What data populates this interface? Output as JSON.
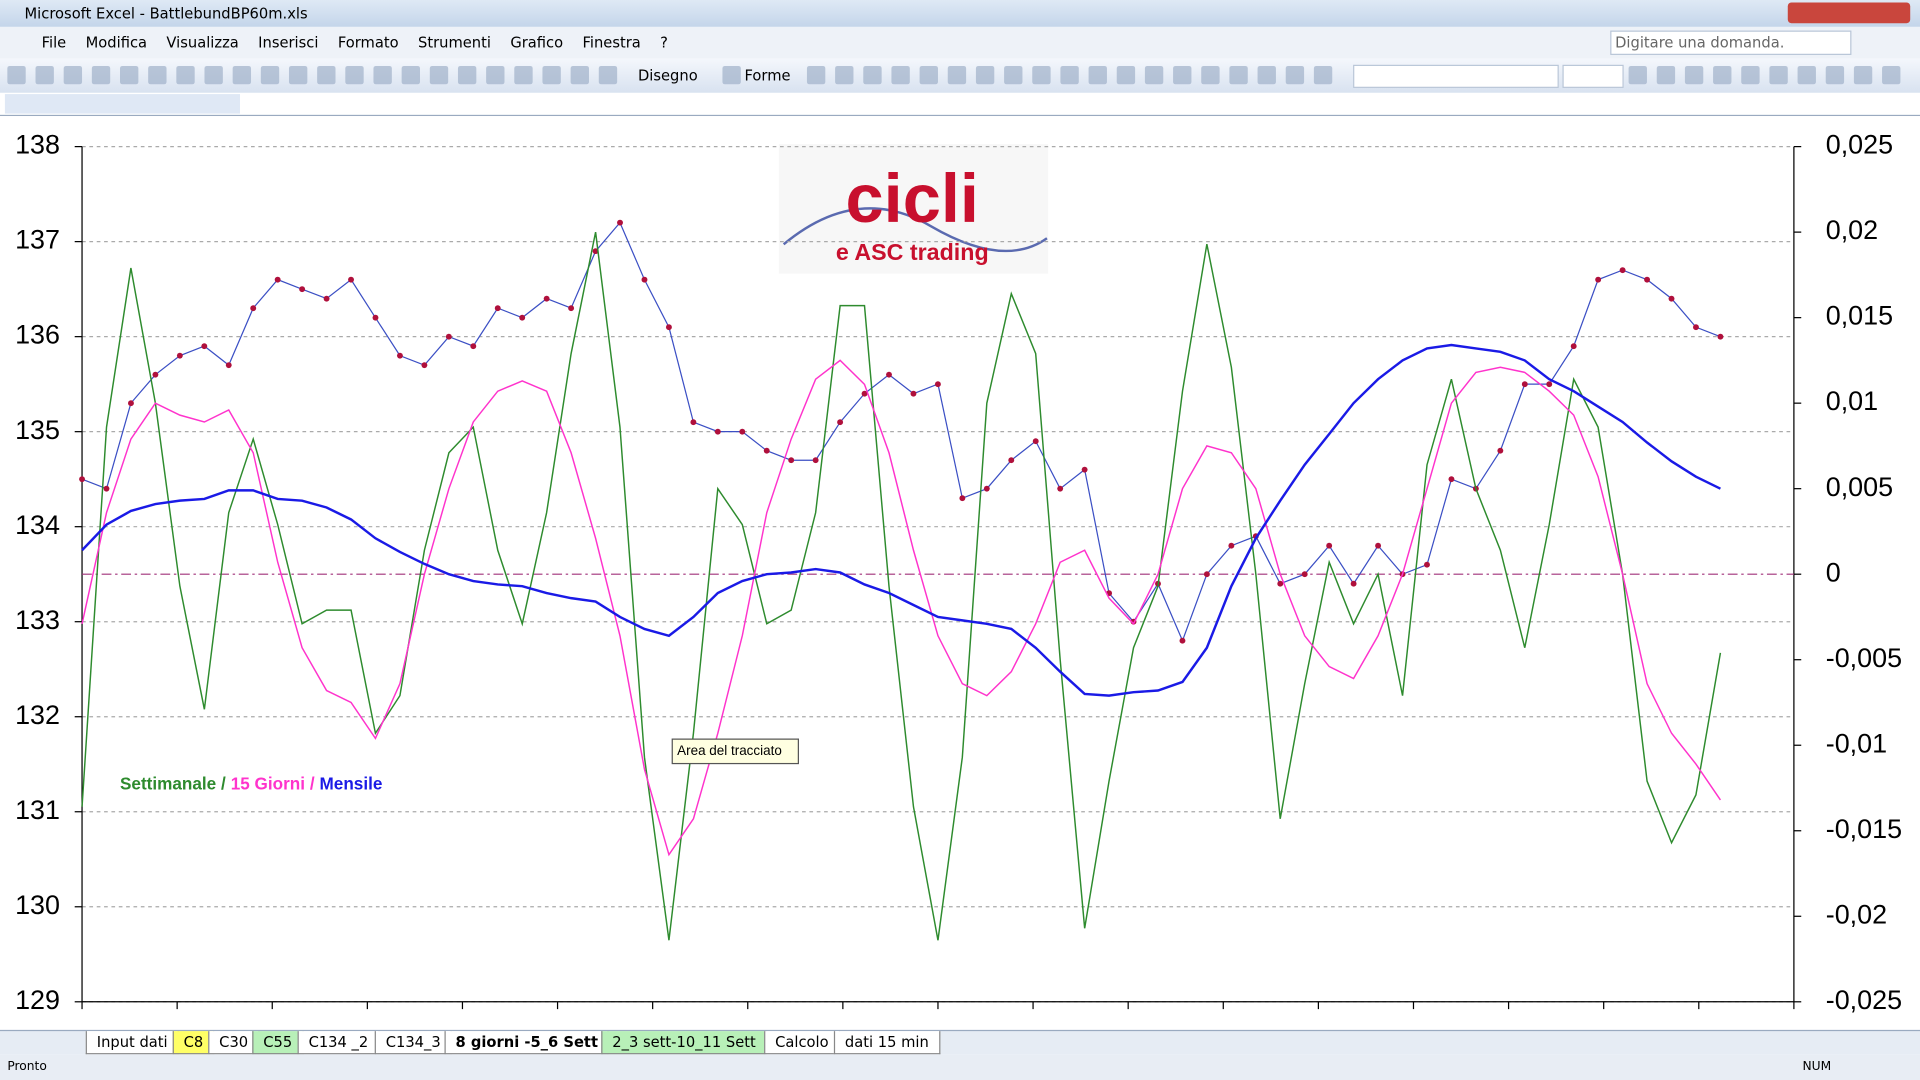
{
  "window": {
    "title": "Microsoft Excel - BattlebundBP60m.xls",
    "help_box": "Digitare una domanda."
  },
  "menu": [
    "File",
    "Modifica",
    "Visualizza",
    "Inserisci",
    "Formato",
    "Strumenti",
    "Grafico",
    "Finestra",
    "?"
  ],
  "toolbar": {
    "draw": "Disegno",
    "shapes": "Forme"
  },
  "logo": {
    "title": "cicli",
    "subtitle": "e ASC trading"
  },
  "tooltip": "Area del tracciato",
  "sheet_tabs": [
    "Input dati",
    "C8",
    "C30",
    "C55",
    "C134 _2",
    "C134_3",
    "8 giorni -5_6 Sett",
    "2_3 sett-10_11 Sett",
    "Calcolo",
    "dati 15 min"
  ],
  "status": {
    "left": "Pronto",
    "num": "NUM"
  },
  "chart_data": {
    "type": "line",
    "grid": true,
    "ylim": [
      129,
      138
    ],
    "yticks": [
      129,
      130,
      131,
      132,
      133,
      134,
      135,
      136,
      137,
      138
    ],
    "y2lim": [
      -0.025,
      0.025
    ],
    "y2ticks": [
      {
        "value": -0.025,
        "label": "-0,025"
      },
      {
        "value": -0.02,
        "label": "-0,02"
      },
      {
        "value": -0.015,
        "label": "-0,015"
      },
      {
        "value": -0.01,
        "label": "-0,01"
      },
      {
        "value": -0.005,
        "label": "-0,005"
      },
      0,
      {
        "value": 0.005,
        "label": "0,005"
      },
      {
        "value": 0.01,
        "label": "0,01"
      },
      {
        "value": 0.015,
        "label": "0,015"
      },
      {
        "value": 0.02,
        "label": "0,02"
      },
      {
        "value": 0.025,
        "label": "0,025"
      }
    ],
    "reference_line": {
      "value": 0,
      "axis": "y2",
      "color": "#a0307a"
    },
    "legend_separator": "/",
    "series": [
      {
        "color": "#3b4fc4",
        "marker_color": "#b0103c",
        "values": [
          134.5,
          134.4,
          135.3,
          135.6,
          135.8,
          135.9,
          135.7,
          136.3,
          136.6,
          136.5,
          136.4,
          136.6,
          136.2,
          135.8,
          135.7,
          136.0,
          135.9,
          136.3,
          136.2,
          136.4,
          136.3,
          136.9,
          137.2,
          136.6,
          136.1,
          135.1,
          135.0,
          135.0,
          134.8,
          134.7,
          134.7,
          135.1,
          135.4,
          135.6,
          135.4,
          135.5,
          134.3,
          134.4,
          134.7,
          134.9,
          134.4,
          134.6,
          133.3,
          133.0,
          133.4,
          132.8,
          133.5,
          133.8,
          133.9,
          133.4,
          133.5,
          133.8,
          133.4,
          133.8,
          133.5,
          133.6,
          134.5,
          134.4,
          134.8,
          135.5,
          135.5,
          135.9,
          136.6,
          136.7,
          136.6,
          136.4,
          136.1,
          136.0
        ]
      },
      {
        "name": "Settimanale",
        "color": "#2e8b2e",
        "axis": "y2",
        "values": [
          -0.0136,
          0.0086,
          0.0179,
          0.01,
          -0.0007,
          -0.0079,
          0.0036,
          0.0079,
          0.0029,
          -0.0029,
          -0.0021,
          -0.0021,
          -0.0093,
          -0.0071,
          0.0014,
          0.0071,
          0.0086,
          0.0014,
          -0.0029,
          0.0036,
          0.0129,
          0.02,
          0.0086,
          -0.0107,
          -0.0214,
          -0.0093,
          0.005,
          0.0029,
          -0.0029,
          -0.0021,
          0.0036,
          0.0157,
          0.0157,
          -0.0007,
          -0.0136,
          -0.0214,
          -0.0107,
          0.01,
          0.0164,
          0.0129,
          -0.005,
          -0.0207,
          -0.0121,
          -0.0043,
          -0.0007,
          0.0107,
          0.0193,
          0.0121,
          0,
          -0.0143,
          -0.0064,
          0.0007,
          -0.0029,
          0,
          -0.0071,
          0.0064,
          0.0114,
          0.005,
          0.0014,
          -0.0043,
          0.0029,
          0.0114,
          0.0086,
          0,
          -0.0121,
          -0.0157,
          -0.0129,
          -0.0046
        ]
      },
      {
        "name": "15 Giorni",
        "color": "#ff33cc",
        "axis": "y2",
        "values": [
          -0.0029,
          0.0036,
          0.0079,
          0.01,
          0.0093,
          0.0089,
          0.0096,
          0.0071,
          0.0007,
          -0.0043,
          -0.0068,
          -0.0075,
          -0.0096,
          -0.0064,
          0,
          0.005,
          0.0089,
          0.0107,
          0.0113,
          0.0107,
          0.0071,
          0.0021,
          -0.0036,
          -0.0114,
          -0.0164,
          -0.0143,
          -0.0093,
          -0.0036,
          0.0036,
          0.0079,
          0.0114,
          0.0125,
          0.0111,
          0.0071,
          0.0014,
          -0.0036,
          -0.0064,
          -0.0071,
          -0.0057,
          -0.0029,
          0.0007,
          0.0014,
          -0.0014,
          -0.0029,
          0,
          0.005,
          0.0075,
          0.0071,
          0.005,
          0,
          -0.0036,
          -0.0054,
          -0.0061,
          -0.0036,
          0,
          0.005,
          0.01,
          0.0118,
          0.0121,
          0.0118,
          0.0107,
          0.0093,
          0.0057,
          0,
          -0.0064,
          -0.0093,
          -0.0111,
          -0.0132
        ]
      },
      {
        "name": "Mensile",
        "color": "#1a1ae6",
        "axis": "y2",
        "values": [
          0.0014,
          0.0029,
          0.0037,
          0.0041,
          0.0043,
          0.0044,
          0.0049,
          0.0049,
          0.0044,
          0.0043,
          0.0039,
          0.0032,
          0.0021,
          0.0013,
          0.0006,
          0,
          -0.0004,
          -0.0006,
          -0.0007,
          -0.0011,
          -0.0014,
          -0.0016,
          -0.0025,
          -0.0032,
          -0.0036,
          -0.0025,
          -0.0011,
          -0.0004,
          0,
          0.0001,
          0.0003,
          0.0001,
          -0.0006,
          -0.0011,
          -0.0018,
          -0.0025,
          -0.0027,
          -0.0029,
          -0.0032,
          -0.0043,
          -0.0057,
          -0.007,
          -0.0071,
          -0.0069,
          -0.0068,
          -0.0063,
          -0.0043,
          -0.0007,
          0.0021,
          0.0043,
          0.0064,
          0.0082,
          0.01,
          0.0114,
          0.0125,
          0.0132,
          0.0134,
          0.0132,
          0.013,
          0.0125,
          0.0114,
          0.0107,
          0.0098,
          0.0089,
          0.0077,
          0.0066,
          0.0057,
          0.005
        ]
      }
    ]
  }
}
